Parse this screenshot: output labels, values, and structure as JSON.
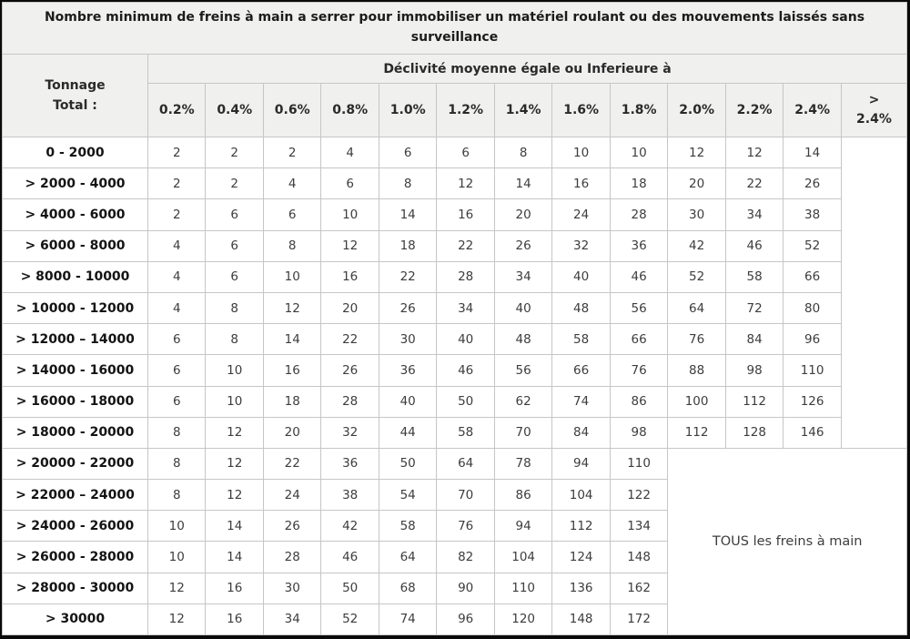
{
  "title": "Nombre minimum de freins à main a serrer pour immobiliser un matériel roulant ou des mouvements laissés sans surveillance",
  "table": {
    "tonnage_header": "Tonnage Total :",
    "gradient_header": "Déclivité moyenne égale ou Inferieure à",
    "columns": [
      "0.2%",
      "0.4%",
      "0.6%",
      "0.8%",
      "1.0%",
      "1.2%",
      "1.4%",
      "1.6%",
      "1.8%",
      "2.0%",
      "2.2%",
      "2.4%",
      "> 2.4%"
    ],
    "rows": [
      {
        "label": "0 - 2000",
        "values": [
          2,
          2,
          2,
          4,
          6,
          6,
          8,
          10,
          10,
          12,
          12,
          14
        ]
      },
      {
        "label": "> 2000 - 4000",
        "values": [
          2,
          2,
          4,
          6,
          8,
          12,
          14,
          16,
          18,
          20,
          22,
          26
        ]
      },
      {
        "label": "> 4000 - 6000",
        "values": [
          2,
          6,
          6,
          10,
          14,
          16,
          20,
          24,
          28,
          30,
          34,
          38
        ]
      },
      {
        "label": "> 6000 - 8000",
        "values": [
          4,
          6,
          8,
          12,
          18,
          22,
          26,
          32,
          36,
          42,
          46,
          52
        ]
      },
      {
        "label": "> 8000 - 10000",
        "values": [
          4,
          6,
          10,
          16,
          22,
          28,
          34,
          40,
          46,
          52,
          58,
          66
        ]
      },
      {
        "label": "> 10000 - 12000",
        "values": [
          4,
          8,
          12,
          20,
          26,
          34,
          40,
          48,
          56,
          64,
          72,
          80
        ]
      },
      {
        "label": "> 12000 – 14000",
        "values": [
          6,
          8,
          14,
          22,
          30,
          40,
          48,
          58,
          66,
          76,
          84,
          96
        ]
      },
      {
        "label": "> 14000 - 16000",
        "values": [
          6,
          10,
          16,
          26,
          36,
          46,
          56,
          66,
          76,
          88,
          98,
          110
        ]
      },
      {
        "label": "> 16000 - 18000",
        "values": [
          6,
          10,
          18,
          28,
          40,
          50,
          62,
          74,
          86,
          100,
          112,
          126
        ]
      },
      {
        "label": "> 18000 - 20000",
        "values": [
          8,
          12,
          20,
          32,
          44,
          58,
          70,
          84,
          98,
          112,
          128,
          146
        ]
      },
      {
        "label": "> 20000 - 22000",
        "values": [
          8,
          12,
          22,
          36,
          50,
          64,
          78,
          94,
          110
        ]
      },
      {
        "label": "> 22000 – 24000",
        "values": [
          8,
          12,
          24,
          38,
          54,
          70,
          86,
          104,
          122
        ]
      },
      {
        "label": "> 24000 - 26000",
        "values": [
          10,
          14,
          26,
          42,
          58,
          76,
          94,
          112,
          134
        ]
      },
      {
        "label": "> 26000 - 28000",
        "values": [
          10,
          14,
          28,
          46,
          64,
          82,
          104,
          124,
          148
        ]
      },
      {
        "label": "> 28000 - 30000",
        "values": [
          12,
          16,
          30,
          50,
          68,
          90,
          110,
          136,
          162
        ]
      },
      {
        "label": "> 30000",
        "values": [
          12,
          16,
          34,
          52,
          74,
          96,
          120,
          148,
          172
        ]
      }
    ],
    "all_brakes_label": "TOUS les freins à main",
    "wide_rows_count": 10,
    "narrow_rows_count": 6
  },
  "colors": {
    "header_bg": "#f0f0ef",
    "cell_border": "#c6c6c6",
    "outer_border": "#0a0a0a",
    "value_text": "#3d3d3d",
    "label_text": "#141414"
  }
}
